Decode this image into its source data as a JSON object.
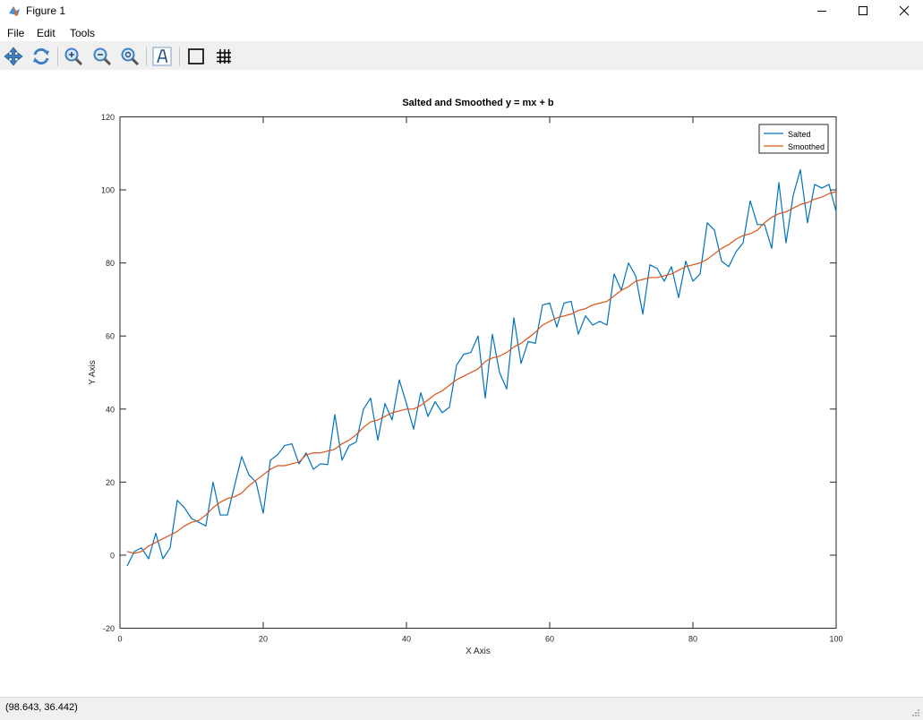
{
  "window": {
    "title": "Figure 1"
  },
  "menu": {
    "items": [
      "File",
      "Edit",
      "Tools"
    ]
  },
  "status": {
    "coordinates": "(98.643, 36.442)"
  },
  "chart_data": {
    "type": "line",
    "title": "Salted and Smoothed  y = mx + b",
    "xlabel": "X Axis",
    "ylabel": "Y Axis",
    "xlim": [
      0,
      100
    ],
    "ylim": [
      -20,
      120
    ],
    "xticks": [
      0,
      20,
      40,
      60,
      80,
      100
    ],
    "yticks": [
      -20,
      0,
      20,
      40,
      60,
      80,
      100,
      120
    ],
    "grid": false,
    "legend": "top-right",
    "x": [
      1,
      2,
      3,
      4,
      5,
      6,
      7,
      8,
      9,
      10,
      11,
      12,
      13,
      14,
      15,
      16,
      17,
      18,
      19,
      20,
      21,
      22,
      23,
      24,
      25,
      26,
      27,
      28,
      29,
      30,
      31,
      32,
      33,
      34,
      35,
      36,
      37,
      38,
      39,
      40,
      41,
      42,
      43,
      44,
      45,
      46,
      47,
      48,
      49,
      50,
      51,
      52,
      53,
      54,
      55,
      56,
      57,
      58,
      59,
      60,
      61,
      62,
      63,
      64,
      65,
      66,
      67,
      68,
      69,
      70,
      71,
      72,
      73,
      74,
      75,
      76,
      77,
      78,
      79,
      80,
      81,
      82,
      83,
      84,
      85,
      86,
      87,
      88,
      89,
      90,
      91,
      92,
      93,
      94,
      95,
      96,
      97,
      98,
      99,
      100
    ],
    "series": [
      {
        "name": "Salted",
        "color": "#0072bd",
        "values": [
          -3,
          1,
          2,
          -1,
          6,
          -1,
          2,
          15,
          13,
          10,
          9,
          8,
          20,
          11,
          11,
          19,
          27,
          22,
          20,
          11.5,
          26,
          27.5,
          30,
          30.5,
          25,
          28,
          23.5,
          25,
          24.8,
          38.5,
          26,
          30,
          31,
          40,
          43,
          31.5,
          41.5,
          37,
          48,
          41.5,
          34.5,
          44.5,
          38,
          42,
          39,
          40.5,
          52,
          55,
          55.5,
          60,
          43,
          60.5,
          50,
          45.5,
          65,
          52.5,
          58.5,
          58,
          68.5,
          69,
          62.5,
          69,
          69.5,
          60.5,
          65.5,
          63,
          64,
          63,
          77,
          72.5,
          80,
          76.5,
          66,
          79.5,
          78.5,
          75,
          79,
          70.5,
          80.5,
          75,
          77,
          91,
          89,
          80.5,
          79,
          83,
          85.5,
          97,
          90.5,
          90.5,
          84,
          102,
          85.5,
          98.5,
          105.5,
          91,
          101.5,
          100.5,
          101.5,
          94
        ]
      },
      {
        "name": "Smoothed",
        "color": "#d95319",
        "values": [
          1,
          0.5,
          1,
          2.5,
          3.5,
          4.5,
          5.5,
          6.5,
          8,
          9,
          9.5,
          11,
          13,
          14.5,
          15.5,
          16,
          17,
          19,
          20.5,
          22,
          23.5,
          24.5,
          24.5,
          25,
          25.5,
          27.5,
          28,
          28,
          28.5,
          29,
          30.5,
          31.5,
          33,
          35,
          36.5,
          37,
          38,
          39,
          39.5,
          40,
          40,
          41,
          42.5,
          44,
          45,
          46.5,
          48,
          49,
          50,
          51,
          53,
          54,
          54.5,
          55.5,
          57,
          58,
          59.5,
          61,
          63,
          64,
          65,
          65.5,
          66,
          67,
          67.5,
          68.5,
          69,
          69.5,
          71,
          72.5,
          73.5,
          75,
          75.5,
          76,
          76,
          76.5,
          77,
          78,
          79,
          79.5,
          80,
          81,
          82.5,
          84,
          85,
          86.5,
          87.5,
          88,
          89,
          91,
          92.5,
          93.5,
          94,
          95,
          96,
          96.5,
          97.5,
          98,
          99,
          99.5
        ]
      }
    ]
  }
}
